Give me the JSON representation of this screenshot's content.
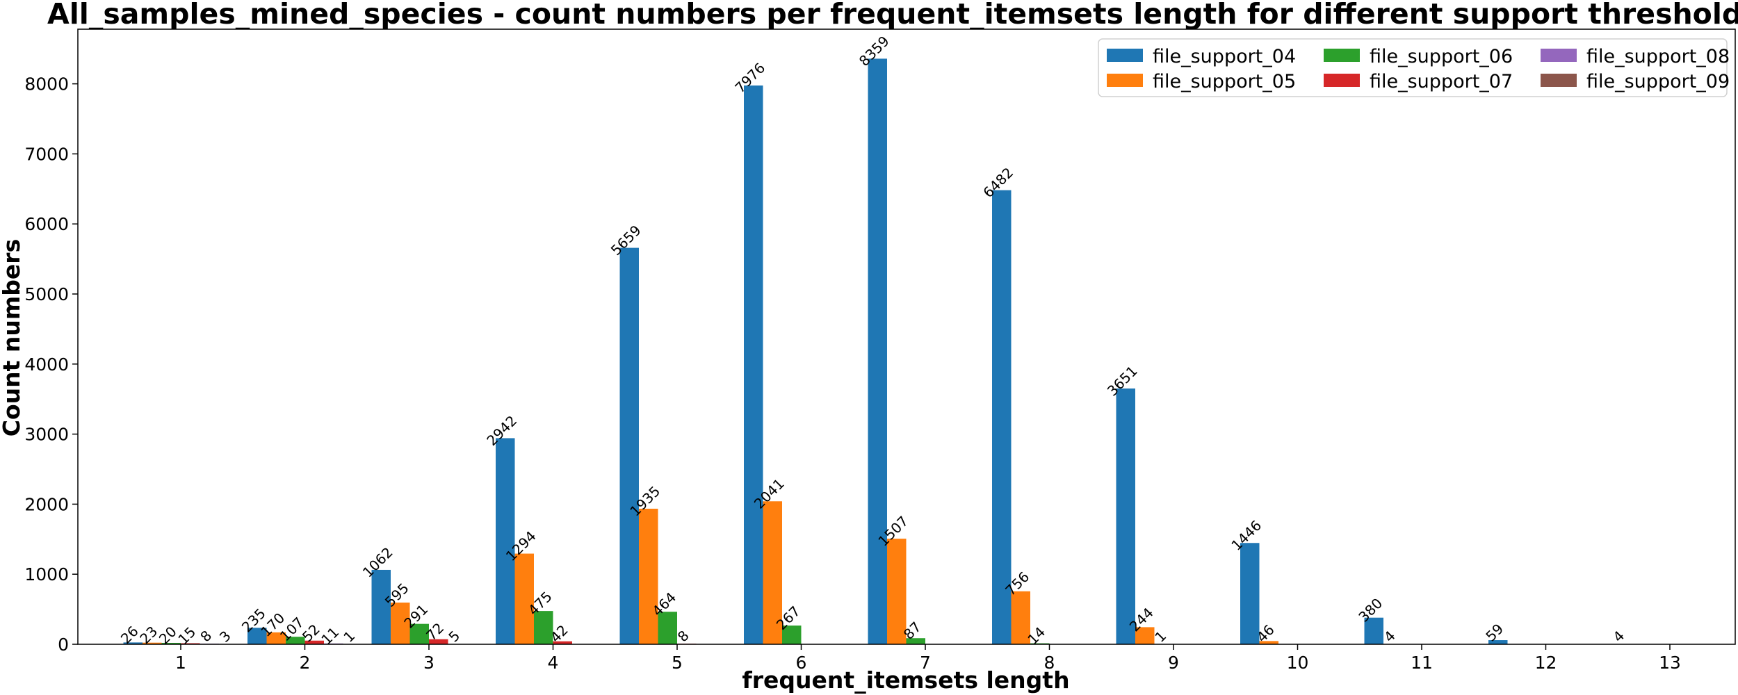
{
  "chart_data": {
    "type": "bar",
    "title": "All_samples_mined_species - count numbers per frequent_itemsets length for different support threshold values",
    "xlabel": "frequent_itemsets length",
    "ylabel": "Count numbers",
    "categories": [
      "1",
      "2",
      "3",
      "4",
      "5",
      "6",
      "7",
      "8",
      "9",
      "10",
      "11",
      "12",
      "13"
    ],
    "ylim": [
      0,
      8780
    ],
    "yticks": [
      0,
      1000,
      2000,
      3000,
      4000,
      5000,
      6000,
      7000,
      8000
    ],
    "grid": false,
    "legend_position": "top-right",
    "series": [
      {
        "name": "file_support_04",
        "color": "#1f77b4",
        "values": [
          26,
          235,
          1062,
          2942,
          5659,
          7976,
          8359,
          6482,
          3651,
          1446,
          380,
          59,
          4
        ]
      },
      {
        "name": "file_support_05",
        "color": "#ff7f0e",
        "values": [
          23,
          170,
          595,
          1294,
          1935,
          2041,
          1507,
          756,
          244,
          46,
          4,
          0,
          0
        ]
      },
      {
        "name": "file_support_06",
        "color": "#2ca02c",
        "values": [
          20,
          107,
          291,
          475,
          464,
          267,
          87,
          14,
          1,
          0,
          0,
          0,
          0
        ]
      },
      {
        "name": "file_support_07",
        "color": "#d62728",
        "values": [
          15,
          52,
          72,
          42,
          8,
          0,
          0,
          0,
          0,
          0,
          0,
          0,
          0
        ]
      },
      {
        "name": "file_support_08",
        "color": "#9467bd",
        "values": [
          8,
          11,
          5,
          0,
          0,
          0,
          0,
          0,
          0,
          0,
          0,
          0,
          0
        ]
      },
      {
        "name": "file_support_09",
        "color": "#8c564b",
        "values": [
          3,
          1,
          0,
          0,
          0,
          0,
          0,
          0,
          0,
          0,
          0,
          0,
          0
        ]
      }
    ]
  }
}
